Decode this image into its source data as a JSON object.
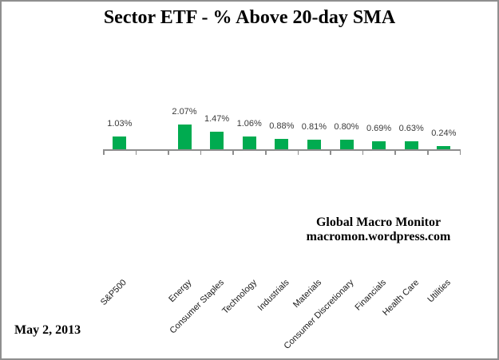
{
  "title": "Sector ETF - % Above 20-day SMA",
  "watermark": {
    "line1": "Global Macro Monitor",
    "line2": "macromon.wordpress.com"
  },
  "date_label": "May 2, 2013",
  "chart_data": {
    "type": "bar",
    "title": "Sector ETF - % Above 20-day SMA",
    "categories": [
      "S&P500",
      "Energy",
      "Consumer Staples",
      "Technology",
      "Industrials",
      "Materials",
      "Consumer Discretionary",
      "Financials",
      "Health Care",
      "Utilities"
    ],
    "values": [
      1.03,
      2.07,
      1.47,
      1.06,
      0.88,
      0.81,
      0.8,
      0.69,
      0.63,
      0.24
    ],
    "value_labels": [
      "1.03%",
      "2.07%",
      "1.47%",
      "1.06%",
      "0.88%",
      "0.81%",
      "0.80%",
      "0.69%",
      "0.63%",
      "0.24%"
    ],
    "slots": [
      0,
      2,
      3,
      4,
      5,
      6,
      7,
      8,
      9,
      10
    ],
    "total_slots": 11,
    "empty_slot_after_first": true,
    "bar_color": "#00AB50",
    "axis_color": "#8e8e8e",
    "value_label_color": "#3a3a3a",
    "category_label_color": "#1a1a1a",
    "category_label_rotation_deg": -45,
    "xlabel": "",
    "ylabel": "",
    "grid": false,
    "legend": false,
    "data_labels": "outside-end",
    "y_axis_visible": false
  }
}
